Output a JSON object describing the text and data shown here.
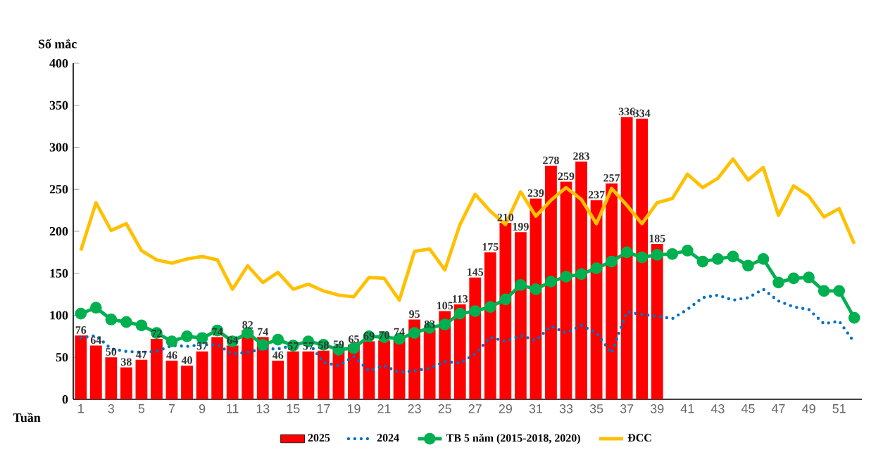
{
  "chart_data": {
    "type": "bar",
    "ylabel": "Số mắc",
    "xlabel": "Tuần",
    "x": [
      1,
      2,
      3,
      4,
      5,
      6,
      7,
      8,
      9,
      10,
      11,
      12,
      13,
      14,
      15,
      16,
      17,
      18,
      19,
      20,
      21,
      22,
      23,
      24,
      25,
      26,
      27,
      28,
      29,
      30,
      31,
      32,
      33,
      34,
      35,
      36,
      37,
      38,
      39,
      40,
      41,
      42,
      43,
      44,
      45,
      46,
      47,
      48,
      49,
      50,
      51,
      52
    ],
    "xlim": [
      0.5,
      52.5
    ],
    "xticks": [
      1,
      3,
      5,
      7,
      9,
      11,
      13,
      15,
      17,
      19,
      21,
      23,
      25,
      27,
      29,
      31,
      33,
      35,
      37,
      39,
      41,
      43,
      45,
      47,
      49,
      51
    ],
    "ylim": [
      0,
      400
    ],
    "yticks": [
      0,
      50,
      100,
      150,
      200,
      250,
      300,
      350,
      400
    ],
    "legend": "bottom",
    "grid": false,
    "series": [
      {
        "name": "2025",
        "type": "bar",
        "color": "#ff0000",
        "values": [
          76,
          64,
          50,
          38,
          47,
          72,
          46,
          40,
          57,
          74,
          64,
          82,
          74,
          46,
          57,
          57,
          58,
          59,
          65,
          69,
          70,
          74,
          95,
          83,
          105,
          113,
          145,
          175,
          210,
          199,
          239,
          278,
          259,
          283,
          237,
          257,
          336,
          334,
          185,
          null,
          null,
          null,
          null,
          null,
          null,
          null,
          null,
          null,
          null,
          null,
          null,
          null
        ],
        "value_labels": [
          "76",
          "64",
          "50",
          "38",
          "47",
          "72",
          "46",
          "40",
          "57",
          "74",
          "64",
          "82",
          "74",
          "46",
          "57",
          "57",
          "58",
          "59",
          "65",
          "69",
          "70",
          "74",
          "95",
          "83",
          "105",
          "113",
          "145",
          "175",
          "210",
          "199",
          "239",
          "278",
          "259",
          "283",
          "237",
          "257",
          "336",
          "334",
          "185",
          null,
          null,
          null,
          null,
          null,
          null,
          null,
          null,
          null,
          null,
          null,
          null,
          null
        ]
      },
      {
        "name": "2024",
        "type": "line",
        "line_style": "dotted",
        "marker": "none",
        "color": "#0070c0",
        "values": [
          73,
          76,
          60,
          57,
          56,
          57,
          64,
          63,
          65,
          65,
          54,
          56,
          60,
          60,
          64,
          68,
          44,
          40,
          51,
          34,
          40,
          32,
          34,
          37,
          45,
          43,
          54,
          74,
          69,
          76,
          70,
          87,
          79,
          88,
          79,
          55,
          104,
          101,
          99,
          96,
          107,
          121,
          124,
          118,
          121,
          131,
          117,
          110,
          107,
          90,
          93,
          68
        ]
      },
      {
        "name": "TB 5 năm (2015-2018, 2020)",
        "type": "line",
        "line_style": "solid",
        "marker": "circle",
        "color": "#00b050",
        "values": [
          102,
          109,
          95,
          92,
          88,
          79,
          69,
          75,
          73,
          82,
          69,
          79,
          65,
          71,
          64,
          69,
          65,
          59,
          61,
          75,
          74,
          72,
          79,
          85,
          89,
          102,
          105,
          110,
          119,
          136,
          131,
          140,
          146,
          149,
          156,
          164,
          175,
          169,
          172,
          173,
          177,
          164,
          167,
          170,
          159,
          167,
          139,
          144,
          145,
          129,
          129,
          97
        ]
      },
      {
        "name": "ĐCC",
        "type": "line",
        "line_style": "solid",
        "marker": "none",
        "color": "#ffc000",
        "values": [
          177,
          234,
          201,
          209,
          177,
          166,
          162,
          167,
          170,
          166,
          131,
          159,
          139,
          151,
          131,
          137,
          129,
          124,
          122,
          145,
          144,
          118,
          176,
          179,
          154,
          208,
          244,
          224,
          208,
          247,
          218,
          237,
          252,
          238,
          209,
          251,
          231,
          209,
          234,
          239,
          268,
          252,
          263,
          286,
          261,
          276,
          219,
          254,
          242,
          217,
          227,
          185
        ]
      }
    ]
  }
}
